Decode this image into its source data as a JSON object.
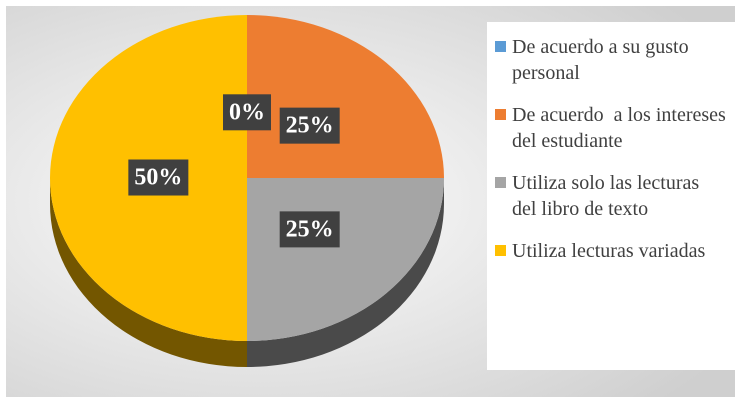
{
  "chart_data": {
    "type": "pie",
    "categories": [
      "De acuerdo a su gusto personal",
      "De acuerdo  a los intereses del estudiante",
      "Utiliza solo las lecturas del libro de texto",
      "Utiliza lecturas variadas"
    ],
    "values": [
      0,
      25,
      25,
      50
    ],
    "value_labels": [
      "0%",
      "25%",
      "25%",
      "50%"
    ],
    "colors": [
      "#5b9bd5",
      "#ed7d31",
      "#a5a5a5",
      "#ffc000"
    ],
    "legend": "right"
  }
}
